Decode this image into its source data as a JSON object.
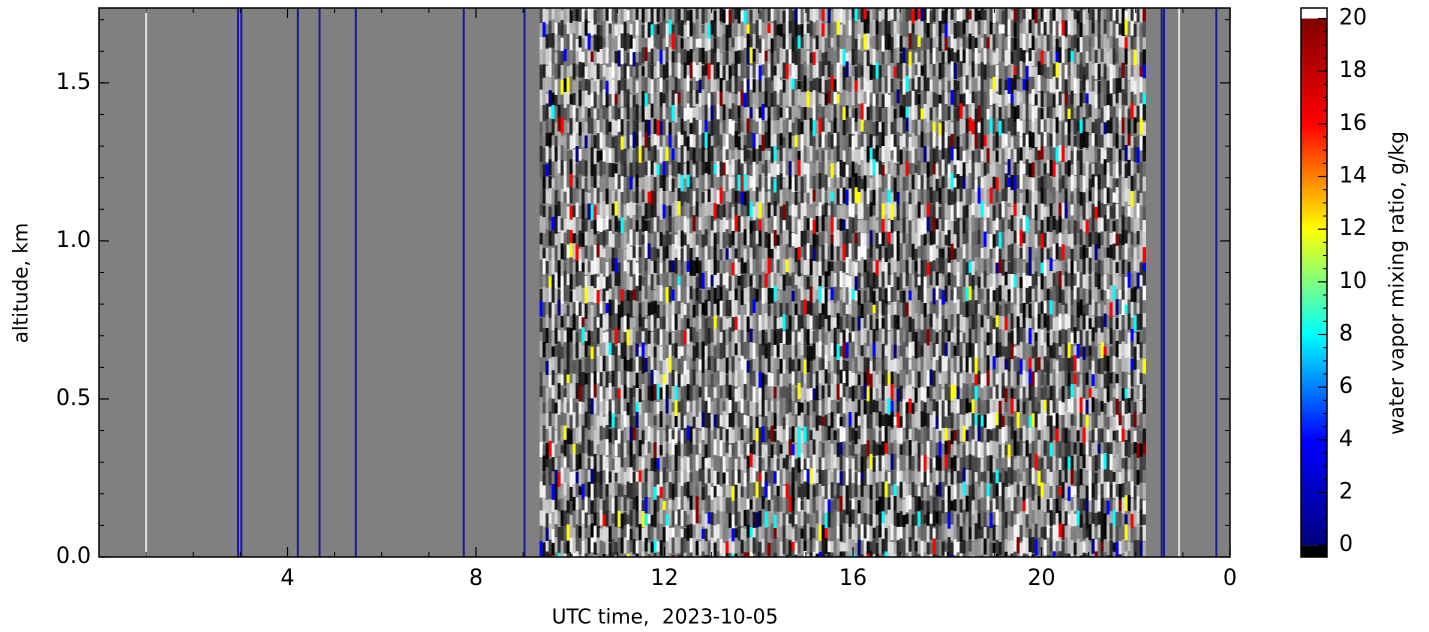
{
  "chart_data": {
    "type": "heatmap",
    "xlabel": "UTC time,  2023-10-05",
    "ylabel": "altitude, km",
    "xlim": [
      0,
      24
    ],
    "xticks": [
      4,
      8,
      12,
      16,
      20,
      {
        "value": 24,
        "label": "0"
      }
    ],
    "xminor": 1,
    "ylim": [
      0,
      1.737
    ],
    "yticks": [
      {
        "value": 0,
        "label": "0.0"
      },
      0.5,
      {
        "value": 1,
        "label": "1.0"
      },
      1.5
    ],
    "yminor": 0.1,
    "background": "#808080",
    "noise_region": [
      9.35,
      22.15
    ],
    "stripes": {
      "x": [
        1.0,
        2.95,
        3.02,
        4.22,
        4.68,
        5.45,
        7.74,
        9.03,
        22.55,
        22.6,
        22.92,
        23.71
      ],
      "color": [
        "#e0e0e0",
        "#1a1a90",
        "#1a1a90",
        "#1a1a90",
        "#1a1a90",
        "#1a1a90",
        "#1a1a90",
        "#1a1a90",
        "#1a1a90",
        "#1a1a90",
        "#e0e0e0",
        "#1a1a90"
      ]
    },
    "colorbar": {
      "label": "water vapor mixing ratio, g/kg",
      "colormap": [
        "#000080",
        "#0000ff",
        "#00ffff",
        "#ffff00",
        "#ff0000",
        "#800000"
      ],
      "lim": [
        -0.45,
        20.4
      ],
      "range": [
        0,
        20
      ],
      "ticks": [
        0,
        2,
        4,
        6,
        8,
        10,
        12,
        14,
        16,
        18,
        20
      ],
      "minor": 0.5,
      "under": "#000000",
      "over": "#ffffff"
    }
  }
}
